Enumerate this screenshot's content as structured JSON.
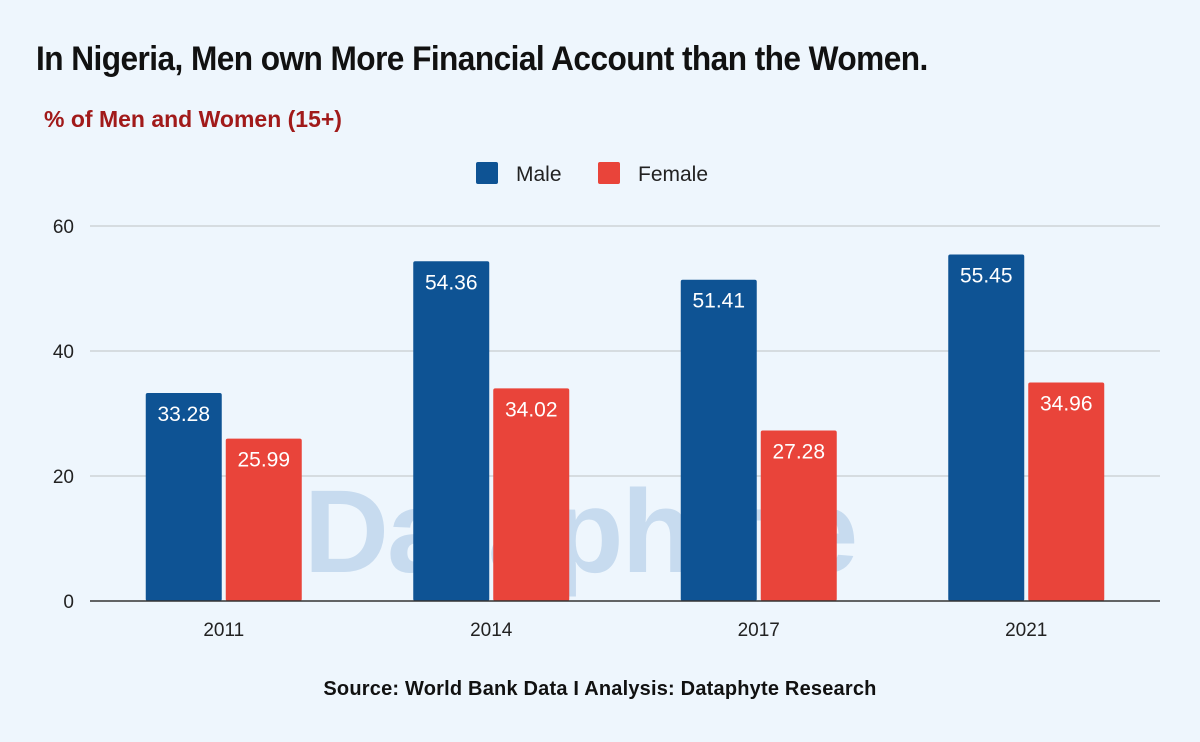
{
  "title": "In Nigeria, Men own More Financial Account than the Women.",
  "subtitle": "% of Men and Women (15+)",
  "source": "Source: World Bank Data I Analysis: Dataphyte Research",
  "watermark": "Dataphyte",
  "colors": {
    "male": "#0e5394",
    "female": "#e9443a",
    "grid": "#c8ccd0",
    "axis": "#333333",
    "watermark": "#b9d2ea"
  },
  "chart_data": {
    "type": "bar",
    "categories": [
      "2011",
      "2014",
      "2017",
      "2021"
    ],
    "series": [
      {
        "name": "Male",
        "values": [
          33.28,
          54.36,
          51.41,
          55.45
        ]
      },
      {
        "name": "Female",
        "values": [
          25.99,
          34.02,
          27.28,
          34.96
        ]
      }
    ],
    "yticks": [
      0,
      20,
      40,
      60
    ],
    "ylim": [
      0,
      60
    ],
    "grid": true,
    "legend_position": "top-center",
    "data_labels": true
  }
}
